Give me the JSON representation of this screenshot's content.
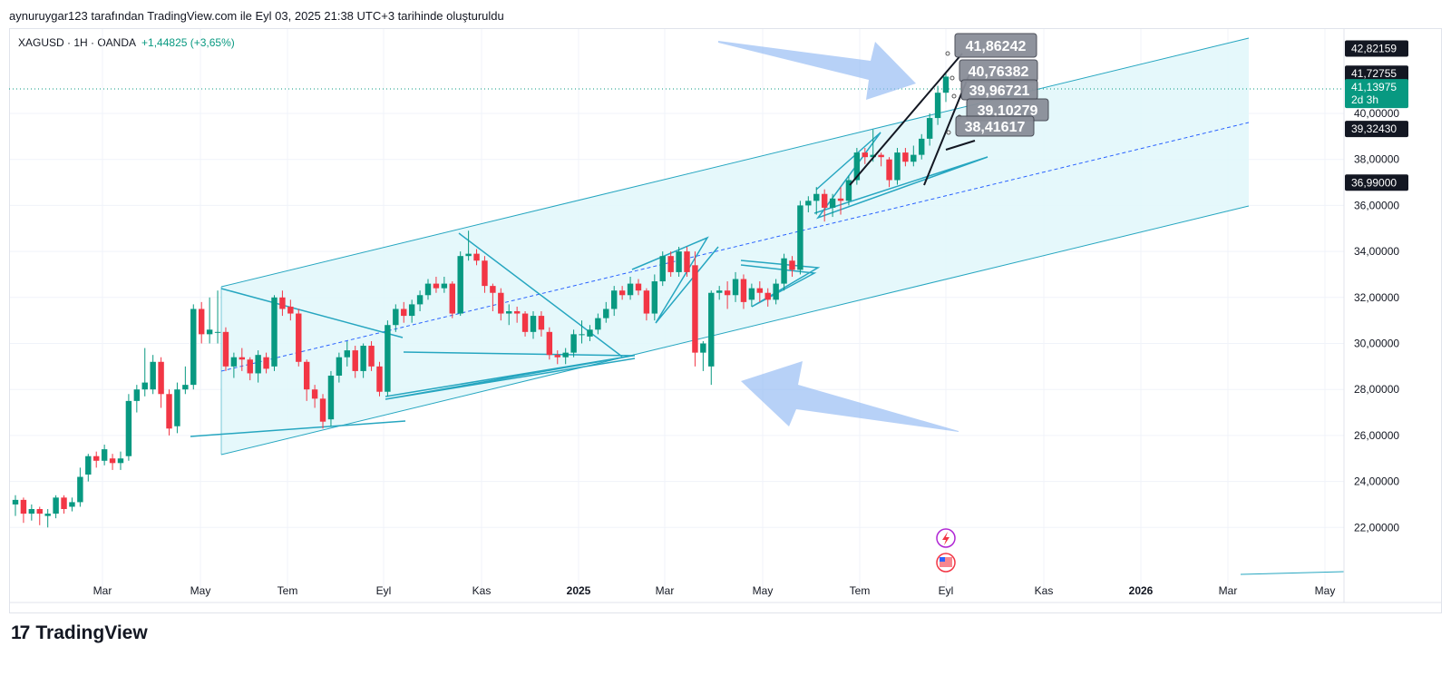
{
  "header": {
    "caption": "aynuruygar123 tarafından TradingView.com ile Eyl 03, 2025 21:38 UTC+3 tarihinde oluşturuldu"
  },
  "legend": {
    "symbol": "XAGUSD · 1H · OANDA",
    "change": "+1,44825 (+3,65%)"
  },
  "brand": {
    "name": "TradingView",
    "logo": "17"
  },
  "colors": {
    "up": "#089981",
    "down": "#f23645",
    "channel": "#26a6c0",
    "channel_fill": "#e0f7fa",
    "arrow": "#90b8f2"
  },
  "chart_data": {
    "type": "candlestick",
    "y_axis": {
      "min": 20,
      "max": 44,
      "ticks": [
        "22,00000",
        "24,00000",
        "26,00000",
        "28,00000",
        "30,00000",
        "32,00000",
        "34,00000",
        "36,00000",
        "38,00000",
        "40,00000"
      ],
      "tick_values": [
        22,
        24,
        26,
        28,
        30,
        32,
        34,
        36,
        38,
        40
      ]
    },
    "x_axis": {
      "labels": [
        "Mar",
        "May",
        "Tem",
        "Eyl",
        "Kas",
        "2025",
        "Mar",
        "May",
        "Tem",
        "Eyl",
        "Kas",
        "2026",
        "Mar",
        "May"
      ]
    },
    "price_tags": [
      {
        "value": 42.82159,
        "label": "42,82159",
        "style": "dark"
      },
      {
        "value": 41.72755,
        "label": "41,72755",
        "style": "dark"
      },
      {
        "value": 41.13975,
        "label": "41,13975",
        "sub": "2d 3h",
        "style": "green"
      },
      {
        "value": 39.3243,
        "label": "39,32430",
        "style": "dark"
      },
      {
        "value": 36.99,
        "label": "36,99000",
        "style": "dark"
      }
    ],
    "annotations": [
      "41,86242",
      "40,76382",
      "39,96721",
      "39,10279",
      "38,41617"
    ],
    "candles": [
      [
        23.0,
        23.2,
        22.6,
        23.4,
        22.5
      ],
      [
        23.2,
        22.6,
        22.6,
        23.3,
        22.2
      ],
      [
        22.6,
        22.8,
        22.5,
        23.0,
        22.3
      ],
      [
        22.8,
        22.6,
        22.4,
        22.9,
        22.1
      ],
      [
        22.5,
        22.6,
        22.4,
        22.8,
        22.0
      ],
      [
        22.6,
        23.3,
        22.6,
        23.4,
        22.4
      ],
      [
        23.3,
        22.8,
        22.8,
        23.4,
        22.6
      ],
      [
        22.9,
        23.1,
        22.9,
        23.3,
        22.7
      ],
      [
        23.1,
        24.2,
        23.1,
        24.6,
        22.9
      ],
      [
        24.3,
        25.1,
        24.2,
        25.2,
        24.0
      ],
      [
        25.1,
        24.9,
        24.8,
        25.3,
        24.6
      ],
      [
        24.9,
        25.4,
        24.9,
        25.6,
        24.7
      ],
      [
        25.0,
        24.8,
        24.7,
        25.2,
        24.5
      ],
      [
        24.8,
        25.0,
        24.6,
        25.3,
        24.5
      ],
      [
        25.1,
        27.5,
        25.1,
        27.8,
        24.9
      ],
      [
        27.5,
        28.0,
        27.2,
        28.2,
        27.0
      ],
      [
        28.0,
        28.3,
        27.8,
        29.8,
        27.7
      ],
      [
        28.0,
        29.2,
        28.0,
        29.5,
        27.8
      ],
      [
        29.2,
        27.8,
        27.5,
        29.4,
        27.2
      ],
      [
        27.8,
        26.3,
        26.2,
        28.0,
        26.0
      ],
      [
        26.4,
        28.0,
        26.3,
        28.3,
        26.1
      ],
      [
        28.0,
        28.2,
        28.0,
        29.0,
        27.8
      ],
      [
        28.2,
        31.5,
        28.2,
        31.7,
        28.0
      ],
      [
        31.5,
        30.4,
        30.3,
        31.8,
        30.0
      ],
      [
        30.4,
        30.6,
        30.3,
        32.0,
        30.0
      ],
      [
        30.5,
        30.5,
        30.2,
        32.3,
        30.0
      ],
      [
        30.5,
        29.0,
        28.9,
        30.7,
        28.8
      ],
      [
        29.0,
        29.4,
        28.8,
        29.6,
        28.5
      ],
      [
        29.4,
        29.3,
        29.0,
        29.8,
        28.8
      ],
      [
        29.3,
        28.7,
        28.5,
        29.4,
        28.4
      ],
      [
        28.7,
        29.5,
        28.6,
        29.7,
        28.3
      ],
      [
        29.4,
        28.9,
        28.9,
        29.6,
        28.7
      ],
      [
        29.0,
        32.0,
        29.0,
        32.1,
        28.8
      ],
      [
        32.0,
        31.5,
        31.4,
        32.3,
        31.2
      ],
      [
        31.6,
        31.3,
        31.2,
        31.9,
        31.0
      ],
      [
        31.3,
        29.2,
        29.2,
        31.5,
        29.0
      ],
      [
        29.2,
        28.0,
        27.8,
        29.3,
        27.5
      ],
      [
        28.0,
        27.6,
        27.4,
        28.2,
        27.2
      ],
      [
        27.6,
        26.6,
        26.4,
        27.8,
        26.3
      ],
      [
        26.7,
        28.6,
        26.6,
        28.8,
        26.4
      ],
      [
        28.6,
        29.4,
        28.5,
        29.6,
        28.3
      ],
      [
        29.4,
        29.7,
        29.2,
        30.1,
        29.0
      ],
      [
        29.7,
        28.8,
        28.7,
        29.9,
        28.5
      ],
      [
        28.8,
        29.9,
        28.7,
        30.0,
        28.5
      ],
      [
        29.9,
        29.0,
        28.9,
        30.1,
        28.8
      ],
      [
        29.0,
        27.9,
        27.8,
        29.2,
        27.7
      ],
      [
        27.9,
        30.8,
        27.9,
        31.0,
        27.7
      ],
      [
        30.8,
        31.5,
        30.7,
        31.7,
        30.5
      ],
      [
        31.5,
        31.2,
        31.0,
        31.8,
        30.9
      ],
      [
        31.2,
        31.7,
        31.1,
        31.9,
        30.9
      ],
      [
        31.7,
        32.1,
        31.6,
        32.3,
        31.4
      ],
      [
        32.1,
        32.6,
        32.0,
        32.8,
        31.9
      ],
      [
        32.6,
        32.4,
        32.2,
        32.9,
        32.2
      ],
      [
        32.4,
        32.6,
        32.3,
        32.9,
        32.2
      ],
      [
        32.6,
        31.3,
        31.2,
        32.7,
        31.1
      ],
      [
        31.3,
        33.8,
        31.3,
        34.0,
        31.2
      ],
      [
        33.8,
        33.9,
        33.7,
        34.9,
        33.6
      ],
      [
        33.9,
        33.6,
        33.5,
        34.1,
        33.4
      ],
      [
        33.6,
        32.5,
        32.3,
        33.8,
        32.2
      ],
      [
        32.5,
        32.2,
        31.6,
        32.6,
        31.4
      ],
      [
        32.2,
        31.3,
        31.2,
        32.4,
        31.0
      ],
      [
        31.3,
        31.4,
        31.0,
        31.7,
        30.8
      ],
      [
        31.4,
        31.3,
        31.0,
        31.6,
        30.9
      ],
      [
        31.3,
        30.5,
        30.4,
        31.4,
        30.3
      ],
      [
        30.5,
        31.2,
        30.3,
        31.4,
        30.2
      ],
      [
        31.2,
        30.6,
        30.5,
        31.4,
        30.3
      ],
      [
        30.5,
        29.5,
        29.4,
        30.7,
        29.3
      ],
      [
        29.5,
        29.4,
        29.3,
        29.7,
        29.1
      ],
      [
        29.4,
        29.6,
        29.2,
        29.8,
        29.1
      ],
      [
        29.6,
        30.4,
        29.5,
        30.6,
        29.4
      ],
      [
        30.4,
        30.4,
        30.0,
        31.0,
        30.0
      ],
      [
        30.3,
        30.6,
        30.2,
        30.8,
        30.1
      ],
      [
        30.6,
        31.1,
        30.5,
        31.3,
        30.4
      ],
      [
        31.1,
        31.5,
        31.0,
        31.8,
        30.9
      ],
      [
        31.5,
        32.3,
        31.4,
        32.5,
        31.2
      ],
      [
        32.3,
        32.1,
        32.0,
        32.5,
        31.9
      ],
      [
        32.1,
        32.6,
        32.0,
        32.9,
        31.9
      ],
      [
        32.6,
        32.3,
        32.2,
        32.8,
        32.1
      ],
      [
        32.3,
        31.3,
        31.2,
        32.4,
        31.0
      ],
      [
        31.3,
        32.7,
        31.2,
        33.0,
        31.0
      ],
      [
        32.7,
        33.8,
        32.6,
        34.0,
        32.5
      ],
      [
        33.8,
        33.1,
        33.0,
        34.0,
        32.9
      ],
      [
        33.1,
        34.0,
        33.0,
        34.2,
        32.9
      ],
      [
        34.0,
        33.1,
        33.0,
        34.2,
        32.9
      ],
      [
        33.4,
        29.6,
        29.5,
        34.0,
        29.0
      ],
      [
        29.6,
        30.0,
        29.0,
        30.1,
        28.8
      ],
      [
        29.0,
        32.2,
        28.3,
        32.3,
        28.2
      ],
      [
        32.2,
        32.3,
        32.0,
        32.5,
        31.9
      ],
      [
        32.3,
        32.1,
        31.7,
        32.7,
        31.5
      ],
      [
        32.1,
        32.8,
        32.0,
        33.1,
        31.8
      ],
      [
        32.8,
        31.8,
        31.7,
        33.0,
        31.5
      ],
      [
        31.9,
        32.4,
        31.8,
        32.6,
        31.6
      ],
      [
        32.4,
        32.2,
        31.9,
        32.7,
        31.8
      ],
      [
        32.2,
        31.9,
        31.7,
        32.4,
        31.6
      ],
      [
        31.9,
        32.6,
        31.8,
        32.8,
        31.7
      ],
      [
        32.6,
        33.7,
        32.5,
        33.9,
        32.3
      ],
      [
        33.6,
        33.2,
        33.0,
        33.8,
        32.9
      ],
      [
        33.2,
        36.0,
        33.2,
        36.2,
        33.0
      ],
      [
        36.0,
        36.2,
        35.8,
        36.4,
        35.7
      ],
      [
        36.2,
        36.5,
        35.9,
        36.8,
        35.6
      ],
      [
        36.5,
        35.9,
        35.6,
        36.7,
        35.3
      ],
      [
        35.9,
        36.3,
        35.7,
        36.5,
        35.5
      ],
      [
        36.3,
        36.2,
        35.9,
        36.8,
        35.6
      ],
      [
        36.2,
        37.1,
        36.2,
        37.3,
        36.0
      ],
      [
        37.1,
        38.3,
        37.0,
        38.5,
        36.9
      ],
      [
        38.3,
        38.1,
        37.9,
        38.5,
        37.8
      ],
      [
        38.1,
        38.2,
        38.0,
        39.3,
        37.9
      ],
      [
        38.2,
        38.1,
        37.8,
        38.3,
        37.7
      ],
      [
        38.0,
        37.1,
        36.9,
        38.1,
        36.8
      ],
      [
        37.1,
        38.3,
        37.0,
        38.5,
        36.9
      ],
      [
        38.3,
        37.9,
        37.8,
        38.5,
        37.7
      ],
      [
        37.9,
        38.2,
        37.8,
        38.6,
        37.7
      ],
      [
        38.2,
        38.9,
        38.1,
        39.1,
        38.0
      ],
      [
        38.9,
        39.8,
        38.7,
        40.0,
        38.6
      ],
      [
        39.8,
        40.9,
        39.7,
        41.2,
        39.5
      ],
      [
        40.9,
        41.6,
        40.7,
        41.8,
        40.5
      ]
    ]
  }
}
